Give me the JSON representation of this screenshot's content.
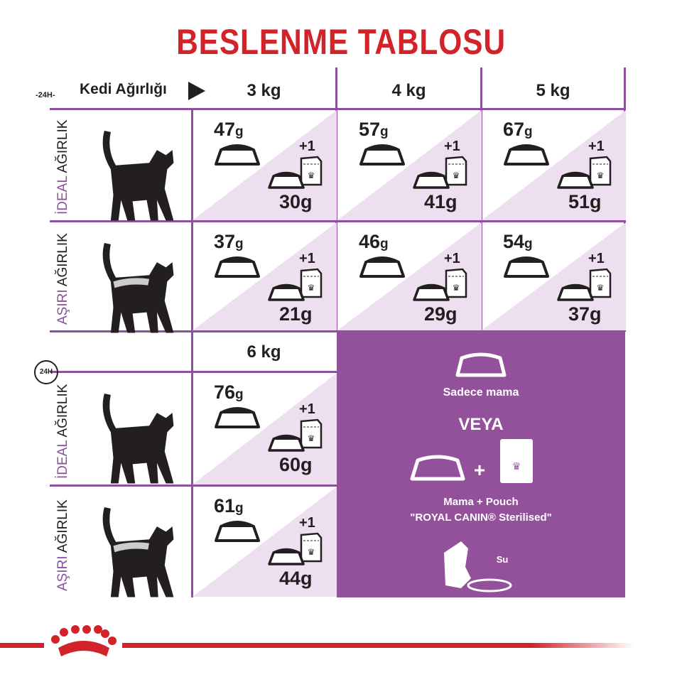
{
  "title": "BESLENME TABLOSU",
  "header": {
    "weight_label": "Kedi Ağırlığı",
    "clock_label": "24H",
    "weights": [
      "3 kg",
      "4 kg",
      "5 kg"
    ],
    "weights2": [
      "6 kg"
    ]
  },
  "row_labels": {
    "ideal": [
      "İDEAL",
      "AĞIRLIK"
    ],
    "over": [
      "AŞIRI",
      "AĞIRLIK"
    ]
  },
  "unit": "g",
  "plus_one": "+1",
  "rows": [
    {
      "type": "ideal",
      "cells": [
        {
          "dry": "47",
          "wet": "30g"
        },
        {
          "dry": "57",
          "wet": "41g"
        },
        {
          "dry": "67",
          "wet": "51g"
        }
      ]
    },
    {
      "type": "over",
      "cells": [
        {
          "dry": "37",
          "wet": "21g"
        },
        {
          "dry": "46",
          "wet": "29g"
        },
        {
          "dry": "54",
          "wet": "37g"
        }
      ]
    },
    {
      "type": "ideal",
      "cells": [
        {
          "dry": "76",
          "wet": "60g"
        }
      ]
    },
    {
      "type": "over",
      "cells": [
        {
          "dry": "61",
          "wet": "44g"
        }
      ]
    }
  ],
  "legend": {
    "only_dry": "Sadece mama",
    "or": "VEYA",
    "mix_line1": "Mama + Pouch",
    "mix_line2": "\"ROYAL CANIN® Sterilised\"",
    "water": "Su"
  },
  "colors": {
    "title": "#d2232a",
    "accent": "#8e4f9e",
    "panel": "#93509b",
    "triangle": "#eedff0"
  }
}
